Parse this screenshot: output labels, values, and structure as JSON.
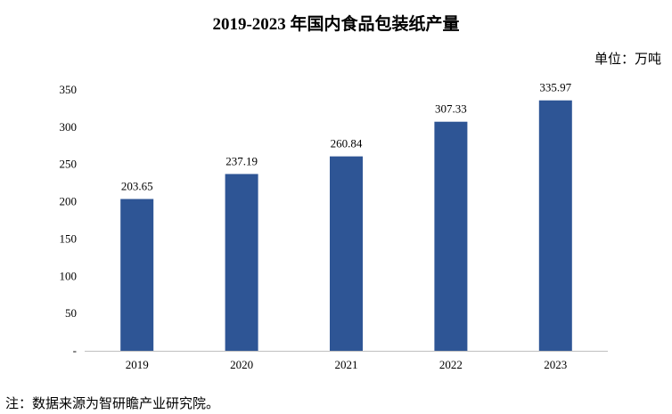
{
  "page_title": "2019-2023 年国内食品包装纸产量",
  "unit_label": "单位：万吨",
  "footnote": "注：数据来源为智研瞻产业研究院。",
  "colors": {
    "bar": "#2e5595",
    "axis": "#bfbfbf",
    "text": "#000000"
  },
  "chart_data": {
    "type": "bar",
    "title": "2019-2023 年国内食品包装纸产量",
    "xlabel": "",
    "ylabel": "",
    "unit": "万吨",
    "categories": [
      "2019",
      "2020",
      "2021",
      "2022",
      "2023"
    ],
    "values": [
      203.65,
      237.19,
      260.84,
      307.33,
      335.97
    ],
    "value_labels": [
      "203.65",
      "237.19",
      "260.84",
      "307.33",
      "335.97"
    ],
    "ylim": [
      0,
      350
    ],
    "yticks": [
      0,
      50,
      100,
      150,
      200,
      250,
      300,
      350
    ],
    "ytick_labels": [
      "-",
      "50",
      "100",
      "150",
      "200",
      "250",
      "300",
      "350"
    ],
    "grid": false,
    "legend": "none"
  }
}
